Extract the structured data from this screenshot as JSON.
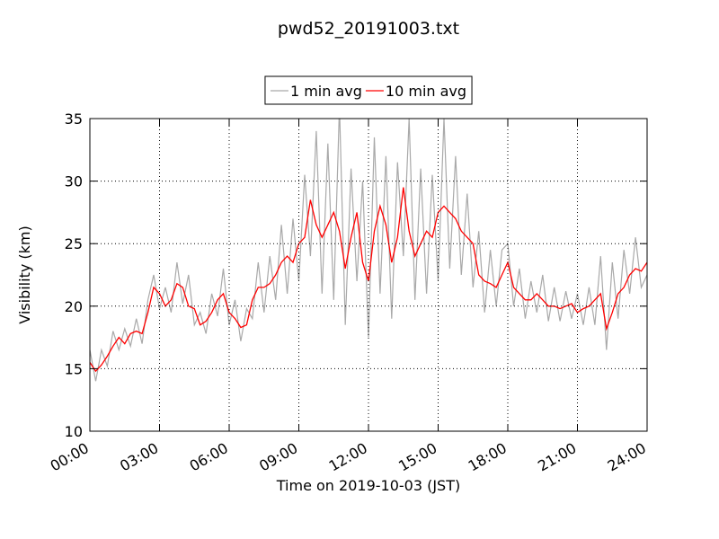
{
  "chart_data": {
    "type": "line",
    "title": "pwd52_20191003.txt",
    "xlabel": "Time on 2019-10-03 (JST)",
    "ylabel": "Visibility (km)",
    "legend": "upper center",
    "grid": true,
    "xlim": [
      0,
      24
    ],
    "ylim": [
      10,
      35
    ],
    "xticks": [
      {
        "value": 0,
        "label": "00:00"
      },
      {
        "value": 3,
        "label": "03:00"
      },
      {
        "value": 6,
        "label": "06:00"
      },
      {
        "value": 9,
        "label": "09:00"
      },
      {
        "value": 12,
        "label": "12:00"
      },
      {
        "value": 15,
        "label": "15:00"
      },
      {
        "value": 18,
        "label": "18:00"
      },
      {
        "value": 21,
        "label": "21:00"
      },
      {
        "value": 24,
        "label": "24:00"
      }
    ],
    "yticks": [
      10,
      15,
      20,
      25,
      30,
      35
    ],
    "x": [
      0,
      0.25,
      0.5,
      0.75,
      1,
      1.25,
      1.5,
      1.75,
      2,
      2.25,
      2.5,
      2.75,
      3,
      3.25,
      3.5,
      3.75,
      4,
      4.25,
      4.5,
      4.75,
      5,
      5.25,
      5.5,
      5.75,
      6,
      6.25,
      6.5,
      6.75,
      7,
      7.25,
      7.5,
      7.75,
      8,
      8.25,
      8.5,
      8.75,
      9,
      9.25,
      9.5,
      9.75,
      10,
      10.25,
      10.5,
      10.75,
      11,
      11.25,
      11.5,
      11.75,
      12,
      12.25,
      12.5,
      12.75,
      13,
      13.25,
      13.5,
      13.75,
      14,
      14.25,
      14.5,
      14.75,
      15,
      15.25,
      15.5,
      15.75,
      16,
      16.25,
      16.5,
      16.75,
      17,
      17.25,
      17.5,
      17.75,
      18,
      18.25,
      18.5,
      18.75,
      19,
      19.25,
      19.5,
      19.75,
      20,
      20.25,
      20.5,
      20.75,
      21,
      21.25,
      21.5,
      21.75,
      22,
      22.25,
      22.5,
      22.75,
      23,
      23.25,
      23.5,
      23.75,
      24
    ],
    "series": [
      {
        "name": "1 min avg",
        "color": "#a9a9a9",
        "values": [
          16.5,
          14.0,
          16.5,
          15.2,
          18.0,
          16.5,
          18.2,
          16.8,
          19.0,
          17.0,
          20.5,
          22.5,
          19.8,
          21.5,
          19.5,
          23.5,
          20.2,
          22.5,
          18.5,
          19.5,
          17.8,
          21.0,
          19.2,
          23.0,
          18.5,
          20.5,
          17.2,
          19.8,
          19.0,
          23.5,
          19.5,
          24.0,
          20.5,
          26.5,
          21.0,
          27.0,
          22.0,
          30.5,
          24.0,
          34.0,
          21.0,
          33.0,
          20.5,
          36.0,
          18.5,
          31.0,
          22.0,
          30.0,
          17.5,
          33.5,
          21.0,
          32.0,
          19.0,
          31.5,
          24.0,
          35.0,
          20.5,
          31.0,
          21.0,
          30.5,
          22.0,
          35.0,
          23.0,
          32.0,
          22.5,
          29.0,
          21.5,
          26.0,
          19.5,
          24.5,
          20.0,
          24.5,
          25.0,
          20.0,
          23.0,
          19.0,
          22.0,
          19.5,
          22.5,
          18.8,
          21.5,
          18.8,
          21.2,
          19.0,
          21.0,
          18.5,
          21.5,
          18.5,
          24.0,
          16.5,
          23.5,
          19.0,
          24.5,
          21.0,
          25.5,
          21.5,
          22.5
        ]
      },
      {
        "name": "10 min avg",
        "color": "#ff0000",
        "values": [
          15.5,
          14.8,
          15.3,
          16.0,
          16.8,
          17.5,
          17.0,
          17.8,
          18.0,
          17.8,
          19.5,
          21.5,
          21.0,
          20.0,
          20.5,
          21.8,
          21.5,
          20.0,
          19.8,
          18.5,
          18.8,
          19.5,
          20.5,
          21.0,
          19.5,
          19.0,
          18.3,
          18.5,
          20.5,
          21.5,
          21.5,
          21.8,
          22.5,
          23.5,
          24.0,
          23.5,
          25.0,
          25.5,
          28.5,
          26.5,
          25.5,
          26.5,
          27.5,
          26.0,
          23.0,
          25.5,
          27.5,
          23.5,
          22.0,
          26.0,
          28.0,
          26.5,
          23.5,
          25.5,
          29.5,
          26.0,
          24.0,
          25.0,
          26.0,
          25.5,
          27.5,
          28.0,
          27.5,
          27.0,
          26.0,
          25.5,
          25.0,
          22.5,
          22.0,
          21.8,
          21.5,
          22.5,
          23.5,
          21.5,
          21.0,
          20.5,
          20.5,
          21.0,
          20.5,
          20.0,
          20.0,
          19.8,
          20.0,
          20.2,
          19.5,
          19.8,
          20.0,
          20.5,
          21.0,
          18.2,
          19.5,
          21.0,
          21.5,
          22.5,
          23.0,
          22.8,
          23.5
        ]
      }
    ]
  }
}
